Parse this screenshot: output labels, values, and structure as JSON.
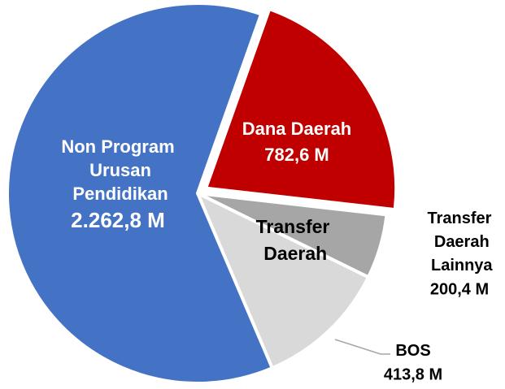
{
  "chart_data": {
    "type": "pie",
    "categories": [
      "Non Program Urusan Pendidikan",
      "Dana Daerah",
      "Transfer Daerah Lainnya",
      "BOS"
    ],
    "values": [
      2262.8,
      782.6,
      200.4,
      413.8
    ],
    "value_labels": [
      "2.262,8 M",
      "782,6 M",
      "200,4 M",
      "413,8 M"
    ],
    "colors": [
      "#4472c4",
      "#c00000",
      "#a6a6a6",
      "#d9d9d9"
    ],
    "annotations": [
      "Transfer Daerah"
    ]
  }
}
